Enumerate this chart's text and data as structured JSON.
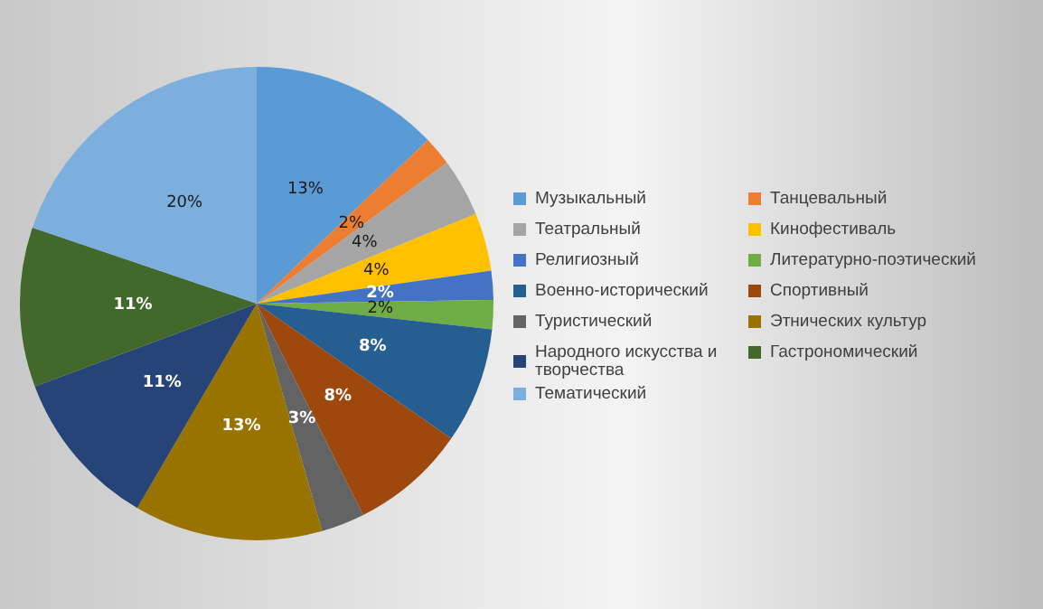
{
  "chart_data": {
    "type": "pie",
    "categories": [
      "Музыкальный",
      "Танцевальный",
      "Театральный",
      "Кинофестиваль",
      "Религиозный",
      "Литературно-поэтический",
      "Военно-исторический",
      "Спортивный",
      "Туристический",
      "Этнических культур",
      "Народного искусства и творчества",
      "Гастрономический",
      "Тематический"
    ],
    "values": [
      13,
      2,
      4,
      4,
      2,
      2,
      8,
      8,
      3,
      13,
      11,
      11,
      20
    ],
    "colors": [
      "#5b9bd5",
      "#ed7d31",
      "#a5a5a5",
      "#ffc000",
      "#4472c4",
      "#70ad47",
      "#255e91",
      "#9e480e",
      "#636363",
      "#997300",
      "#264478",
      "#43682b",
      "#7cafdd"
    ],
    "value_labels": [
      "13%",
      "2%",
      "4%",
      "4%",
      "2%",
      "2%",
      "8%",
      "8%",
      "3%",
      "13%",
      "11%",
      "11%",
      "20%"
    ],
    "legend": "right"
  }
}
